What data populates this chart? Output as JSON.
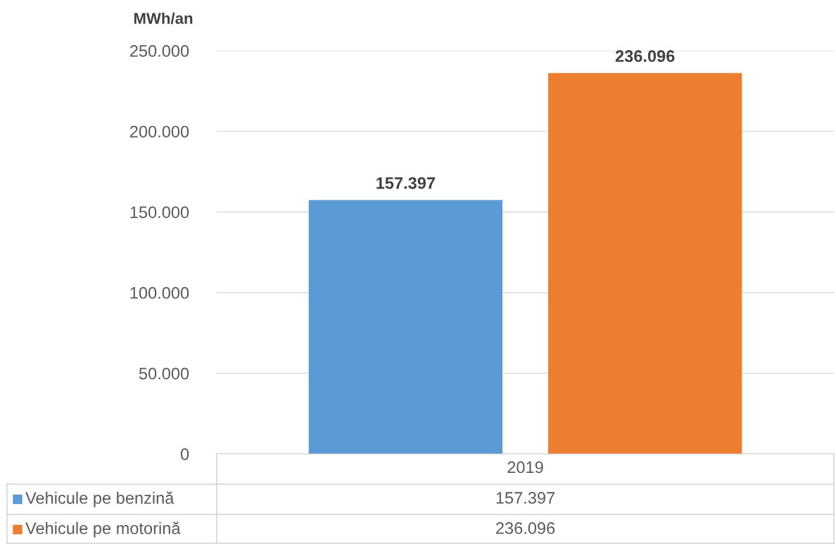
{
  "chart_data": {
    "type": "bar",
    "ylabel": "MWh/an",
    "categories": [
      "2019"
    ],
    "series": [
      {
        "name": "Vehicule pe benzină",
        "color": "#5b9bd5",
        "values": [
          157397
        ],
        "value_labels": [
          "157.397"
        ]
      },
      {
        "name": "Vehicule pe motorină",
        "color": "#ed7d31",
        "values": [
          236096
        ],
        "value_labels": [
          "236.096"
        ]
      }
    ],
    "ylim": [
      0,
      250000
    ],
    "yticks": [
      {
        "value": 0,
        "label": "0"
      },
      {
        "value": 50000,
        "label": "50.000"
      },
      {
        "value": 100000,
        "label": "100.000"
      },
      {
        "value": 150000,
        "label": "150.000"
      },
      {
        "value": 200000,
        "label": "200.000"
      },
      {
        "value": 250000,
        "label": "250.000"
      }
    ],
    "grid": "y",
    "legend": "bottom"
  }
}
